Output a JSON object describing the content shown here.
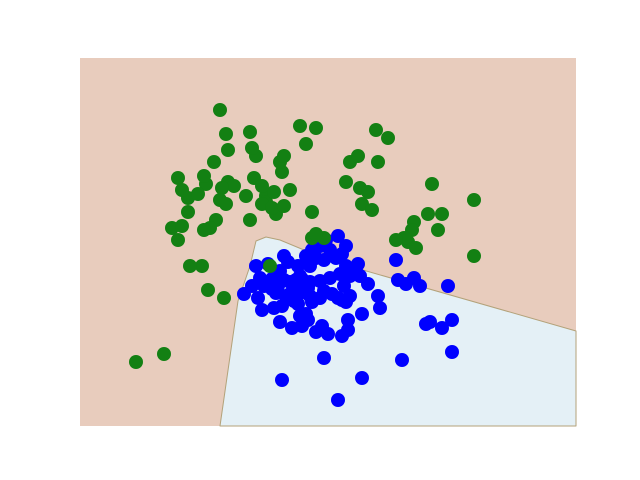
{
  "chart_data": {
    "type": "scatter",
    "title": "",
    "xlabel": "",
    "ylabel": "",
    "xlim": [
      0,
      496
    ],
    "ylim": [
      0,
      368
    ],
    "grid": false,
    "axes_visible": false,
    "background_color": "#ffffff",
    "decision_regions": [
      {
        "fill": "#e8ccbd",
        "polygon": [
          [
            0,
            368
          ],
          [
            496,
            368
          ],
          [
            496,
            0
          ],
          [
            0,
            0
          ]
        ]
      },
      {
        "fill": "#e4f0f6",
        "edge": "#b3a27a",
        "polygon": [
          [
            140,
            0
          ],
          [
            158,
            125
          ],
          [
            170,
            160
          ],
          [
            176,
            185
          ],
          [
            186,
            189
          ],
          [
            200,
            186
          ],
          [
            248,
            166
          ],
          [
            496,
            95
          ],
          [
            496,
            0
          ]
        ]
      }
    ],
    "series": [
      {
        "color": "#0000ff",
        "points": [
          [
            180,
            148
          ],
          [
            192,
            147
          ],
          [
            198,
            145
          ],
          [
            204,
            146
          ],
          [
            210,
            144
          ],
          [
            216,
            146
          ],
          [
            222,
            147
          ],
          [
            230,
            144
          ],
          [
            240,
            145
          ],
          [
            250,
            148
          ],
          [
            192,
            137
          ],
          [
            196,
            133
          ],
          [
            178,
            128
          ],
          [
            182,
            116
          ],
          [
            194,
            118
          ],
          [
            202,
            120
          ],
          [
            206,
            130
          ],
          [
            214,
            125
          ],
          [
            218,
            122
          ],
          [
            224,
            135
          ],
          [
            230,
            130
          ],
          [
            232,
            124
          ],
          [
            240,
            128
          ],
          [
            244,
            135
          ],
          [
            252,
            132
          ],
          [
            258,
            128
          ],
          [
            262,
            126
          ],
          [
            266,
            124
          ],
          [
            270,
            130
          ],
          [
            176,
            160
          ],
          [
            188,
            162
          ],
          [
            200,
            155
          ],
          [
            208,
            164
          ],
          [
            218,
            160
          ],
          [
            226,
            170
          ],
          [
            230,
            160
          ],
          [
            232,
            176
          ],
          [
            236,
            168
          ],
          [
            240,
            180
          ],
          [
            244,
            166
          ],
          [
            250,
            176
          ],
          [
            256,
            168
          ],
          [
            262,
            172
          ],
          [
            266,
            160
          ],
          [
            270,
            150
          ],
          [
            276,
            158
          ],
          [
            280,
            150
          ],
          [
            172,
            140
          ],
          [
            184,
            140
          ],
          [
            236,
            188
          ],
          [
            246,
            186
          ],
          [
            258,
            190
          ],
          [
            260,
            152
          ],
          [
            264,
            140
          ],
          [
            266,
            180
          ],
          [
            278,
            162
          ],
          [
            228,
            138
          ],
          [
            220,
            150
          ],
          [
            204,
            170
          ],
          [
            210,
            132
          ],
          [
            216,
            138
          ],
          [
            220,
            133
          ],
          [
            198,
            140
          ],
          [
            200,
            104
          ],
          [
            212,
            98
          ],
          [
            222,
            100
          ],
          [
            242,
            100
          ],
          [
            268,
            96
          ],
          [
            220,
            110
          ],
          [
            226,
            112
          ],
          [
            228,
            106
          ],
          [
            236,
            94
          ],
          [
            248,
            92
          ],
          [
            288,
            142
          ],
          [
            298,
            130
          ],
          [
            318,
            146
          ],
          [
            326,
            142
          ],
          [
            334,
            148
          ],
          [
            340,
            140
          ],
          [
            316,
            166
          ],
          [
            300,
            118
          ],
          [
            346,
            102
          ],
          [
            350,
            104
          ],
          [
            262,
            90
          ],
          [
            268,
            106
          ],
          [
            282,
            112
          ],
          [
            372,
            106
          ],
          [
            362,
            98
          ],
          [
            368,
            140
          ],
          [
            372,
            74
          ],
          [
            322,
            66
          ],
          [
            282,
            48
          ],
          [
            244,
            68
          ],
          [
            202,
            46
          ],
          [
            258,
            26
          ],
          [
            164,
            132
          ]
        ]
      },
      {
        "color": "#138013",
        "points": [
          [
            140,
            316
          ],
          [
            146,
            292
          ],
          [
            148,
            276
          ],
          [
            126,
            242
          ],
          [
            134,
            264
          ],
          [
            98,
            248
          ],
          [
            108,
            228
          ],
          [
            118,
            232
          ],
          [
            124,
            250
          ],
          [
            148,
            244
          ],
          [
            154,
            240
          ],
          [
            142,
            238
          ],
          [
            140,
            226
          ],
          [
            136,
            206
          ],
          [
            146,
            222
          ],
          [
            92,
            198
          ],
          [
            174,
            248
          ],
          [
            176,
            270
          ],
          [
            186,
            230
          ],
          [
            186,
            224
          ],
          [
            202,
            254
          ],
          [
            200,
            264
          ],
          [
            204,
            270
          ],
          [
            172,
            278
          ],
          [
            170,
            294
          ],
          [
            220,
            300
          ],
          [
            236,
            298
          ],
          [
            226,
            282
          ],
          [
            270,
            264
          ],
          [
            278,
            270
          ],
          [
            296,
            296
          ],
          [
            308,
            288
          ],
          [
            266,
            244
          ],
          [
            282,
            222
          ],
          [
            292,
            216
          ],
          [
            280,
            238
          ],
          [
            298,
            264
          ],
          [
            352,
            242
          ],
          [
            334,
            204
          ],
          [
            348,
            212
          ],
          [
            332,
            196
          ],
          [
            358,
            196
          ],
          [
            328,
            184
          ],
          [
            336,
            178
          ],
          [
            324,
            188
          ],
          [
            362,
            212
          ],
          [
            316,
            186
          ],
          [
            394,
            170
          ],
          [
            394,
            226
          ],
          [
            232,
            214
          ],
          [
            288,
            234
          ],
          [
            102,
            236
          ],
          [
            194,
            234
          ],
          [
            182,
            222
          ],
          [
            170,
            206
          ],
          [
            128,
            136
          ],
          [
            122,
            160
          ],
          [
            110,
            160
          ],
          [
            144,
            128
          ],
          [
            102,
            200
          ],
          [
            108,
            214
          ],
          [
            196,
            212
          ],
          [
            192,
            218
          ],
          [
            84,
            72
          ],
          [
            56,
            64
          ],
          [
            98,
            186
          ],
          [
            244,
            188
          ],
          [
            232,
            188
          ],
          [
            236,
            192
          ],
          [
            182,
            240
          ],
          [
            166,
            230
          ],
          [
            190,
            160
          ],
          [
            204,
            220
          ],
          [
            210,
            236
          ],
          [
            130,
            198
          ],
          [
            124,
            196
          ]
        ]
      }
    ]
  }
}
